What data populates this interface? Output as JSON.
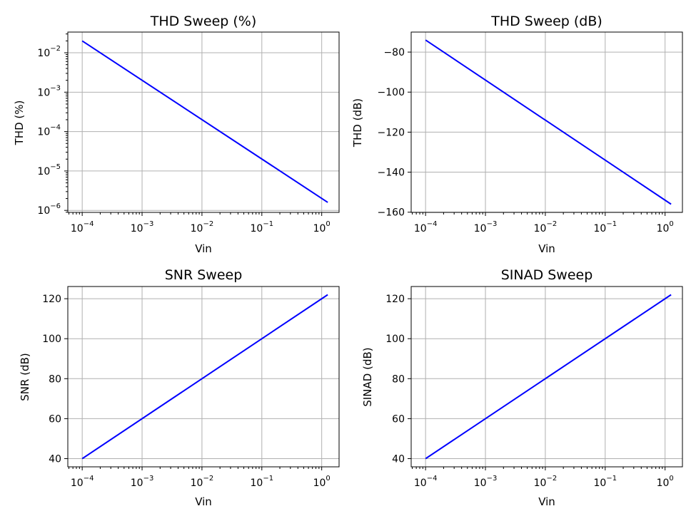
{
  "colors": {
    "line": "#0000ff",
    "grid": "#b0b0b0",
    "frame": "#000000",
    "background": "#ffffff"
  },
  "chart_data": [
    {
      "type": "line",
      "title": "THD Sweep (%)",
      "xlabel": "Vin",
      "ylabel": "THD (%)",
      "xscale": "log",
      "yscale": "log",
      "xlim": [
        5.75e-05,
        1.95
      ],
      "ylim": [
        8.9e-07,
        0.0335
      ],
      "xticks": [
        {
          "value": 0.0001,
          "base": "10",
          "exp": "−4"
        },
        {
          "value": 0.001,
          "base": "10",
          "exp": "−3"
        },
        {
          "value": 0.01,
          "base": "10",
          "exp": "−2"
        },
        {
          "value": 0.1,
          "base": "10",
          "exp": "−1"
        },
        {
          "value": 1,
          "base": "10",
          "exp": "0"
        }
      ],
      "yticks": [
        {
          "value": 1e-06,
          "base": "10",
          "exp": "−6"
        },
        {
          "value": 1e-05,
          "base": "10",
          "exp": "−5"
        },
        {
          "value": 0.0001,
          "base": "10",
          "exp": "−4"
        },
        {
          "value": 0.001,
          "base": "10",
          "exp": "−3"
        },
        {
          "value": 0.01,
          "base": "10",
          "exp": "−2"
        }
      ],
      "grid": true,
      "series": [
        {
          "x": [
            0.0001,
            1.26
          ],
          "y": [
            0.02,
            1.6e-06
          ]
        }
      ]
    },
    {
      "type": "line",
      "title": "THD Sweep (dB)",
      "xlabel": "Vin",
      "ylabel": "THD (dB)",
      "xscale": "log",
      "yscale": "linear",
      "xlim": [
        5.75e-05,
        1.95
      ],
      "ylim": [
        -160.1,
        -70.0
      ],
      "xticks": [
        {
          "value": 0.0001,
          "base": "10",
          "exp": "−4"
        },
        {
          "value": 0.001,
          "base": "10",
          "exp": "−3"
        },
        {
          "value": 0.01,
          "base": "10",
          "exp": "−2"
        },
        {
          "value": 0.1,
          "base": "10",
          "exp": "−1"
        },
        {
          "value": 1,
          "base": "10",
          "exp": "0"
        }
      ],
      "yticks": [
        {
          "value": -160,
          "label": "−160"
        },
        {
          "value": -140,
          "label": "−140"
        },
        {
          "value": -120,
          "label": "−120"
        },
        {
          "value": -100,
          "label": "−100"
        },
        {
          "value": -80,
          "label": "−80"
        }
      ],
      "grid": true,
      "series": [
        {
          "x": [
            0.0001,
            1.26
          ],
          "y": [
            -74,
            -156
          ]
        }
      ]
    },
    {
      "type": "line",
      "title": "SNR Sweep",
      "xlabel": "Vin",
      "ylabel": "SNR (dB)",
      "xscale": "log",
      "yscale": "linear",
      "xlim": [
        5.75e-05,
        1.95
      ],
      "ylim": [
        35.9,
        126.1
      ],
      "xticks": [
        {
          "value": 0.0001,
          "base": "10",
          "exp": "−4"
        },
        {
          "value": 0.001,
          "base": "10",
          "exp": "−3"
        },
        {
          "value": 0.01,
          "base": "10",
          "exp": "−2"
        },
        {
          "value": 0.1,
          "base": "10",
          "exp": "−1"
        },
        {
          "value": 1,
          "base": "10",
          "exp": "0"
        }
      ],
      "yticks": [
        {
          "value": 40,
          "label": "40"
        },
        {
          "value": 60,
          "label": "60"
        },
        {
          "value": 80,
          "label": "80"
        },
        {
          "value": 100,
          "label": "100"
        },
        {
          "value": 120,
          "label": "120"
        }
      ],
      "grid": true,
      "series": [
        {
          "x": [
            0.0001,
            1.26
          ],
          "y": [
            40,
            122
          ]
        }
      ]
    },
    {
      "type": "line",
      "title": "SINAD Sweep",
      "xlabel": "Vin",
      "ylabel": "SINAD (dB)",
      "xscale": "log",
      "yscale": "linear",
      "xlim": [
        5.75e-05,
        1.95
      ],
      "ylim": [
        35.9,
        126.1
      ],
      "xticks": [
        {
          "value": 0.0001,
          "base": "10",
          "exp": "−4"
        },
        {
          "value": 0.001,
          "base": "10",
          "exp": "−3"
        },
        {
          "value": 0.01,
          "base": "10",
          "exp": "−2"
        },
        {
          "value": 0.1,
          "base": "10",
          "exp": "−1"
        },
        {
          "value": 1,
          "base": "10",
          "exp": "0"
        }
      ],
      "yticks": [
        {
          "value": 40,
          "label": "40"
        },
        {
          "value": 60,
          "label": "60"
        },
        {
          "value": 80,
          "label": "80"
        },
        {
          "value": 100,
          "label": "100"
        },
        {
          "value": 120,
          "label": "120"
        }
      ],
      "grid": true,
      "series": [
        {
          "x": [
            0.0001,
            1.26
          ],
          "y": [
            40,
            122
          ]
        }
      ]
    }
  ]
}
